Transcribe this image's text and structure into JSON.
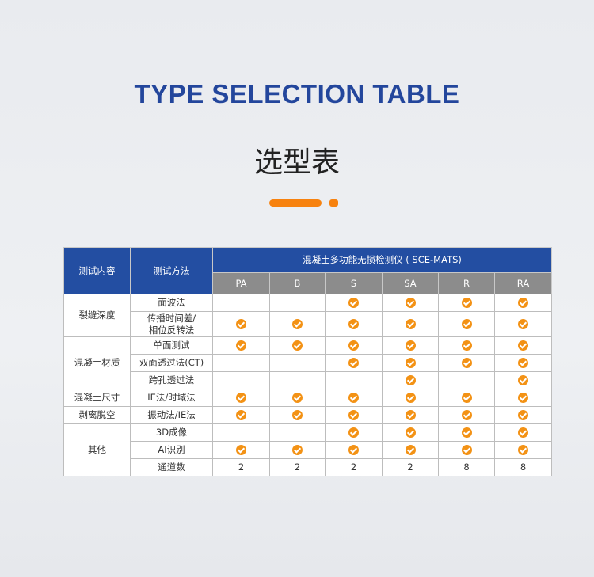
{
  "title": "TYPE SELECTION TABLE",
  "subtitle": "选型表",
  "colors": {
    "title": "#23469c",
    "header_blue": "#234ea2",
    "header_grey": "#8c8c8c",
    "check": "#f39215",
    "accent_bar": "#f7820f"
  },
  "table": {
    "col_content": "测试内容",
    "col_method": "测试方法",
    "product": "混凝土多功能无损检测仪 ( SCE-MATS)",
    "models": [
      "PA",
      "B",
      "S",
      "SA",
      "R",
      "RA"
    ],
    "check_icon": "orange-check-circle-icon",
    "groups": [
      {
        "name": "裂缝深度",
        "rows": [
          {
            "method": "面波法",
            "values": [
              false,
              false,
              true,
              true,
              true,
              true
            ]
          },
          {
            "method": "传播时间差/\n相位反转法",
            "values": [
              true,
              true,
              true,
              true,
              true,
              true
            ]
          }
        ]
      },
      {
        "name": "混凝土材质",
        "rows": [
          {
            "method": "单面测试",
            "values": [
              true,
              true,
              true,
              true,
              true,
              true
            ]
          },
          {
            "method": "双面透过法(CT)",
            "values": [
              false,
              false,
              true,
              true,
              true,
              true
            ]
          },
          {
            "method": "跨孔透过法",
            "values": [
              false,
              false,
              false,
              true,
              false,
              true
            ]
          }
        ]
      },
      {
        "name": "混凝土尺寸",
        "rows": [
          {
            "method": "IE法/时域法",
            "values": [
              true,
              true,
              true,
              true,
              true,
              true
            ]
          }
        ]
      },
      {
        "name": "剥离脱空",
        "rows": [
          {
            "method": "振动法/IE法",
            "values": [
              true,
              true,
              true,
              true,
              true,
              true
            ]
          }
        ]
      },
      {
        "name": "其他",
        "rows": [
          {
            "method": "3D成像",
            "values": [
              false,
              false,
              true,
              true,
              true,
              true
            ]
          },
          {
            "method": "AI识别",
            "values": [
              true,
              true,
              true,
              true,
              true,
              true
            ]
          },
          {
            "method": "通道数",
            "values": [
              "2",
              "2",
              "2",
              "2",
              "8",
              "8"
            ]
          }
        ]
      }
    ]
  }
}
